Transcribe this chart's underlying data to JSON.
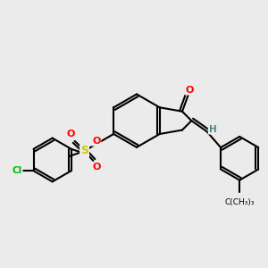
{
  "background_color": "#ebebeb",
  "bond_color": "#000000",
  "atom_colors": {
    "O": "#ff0000",
    "S": "#cccc00",
    "Cl": "#00bb00",
    "H": "#4a8a8a",
    "C": "#000000"
  },
  "figsize": [
    3.0,
    3.0
  ],
  "dpi": 100
}
